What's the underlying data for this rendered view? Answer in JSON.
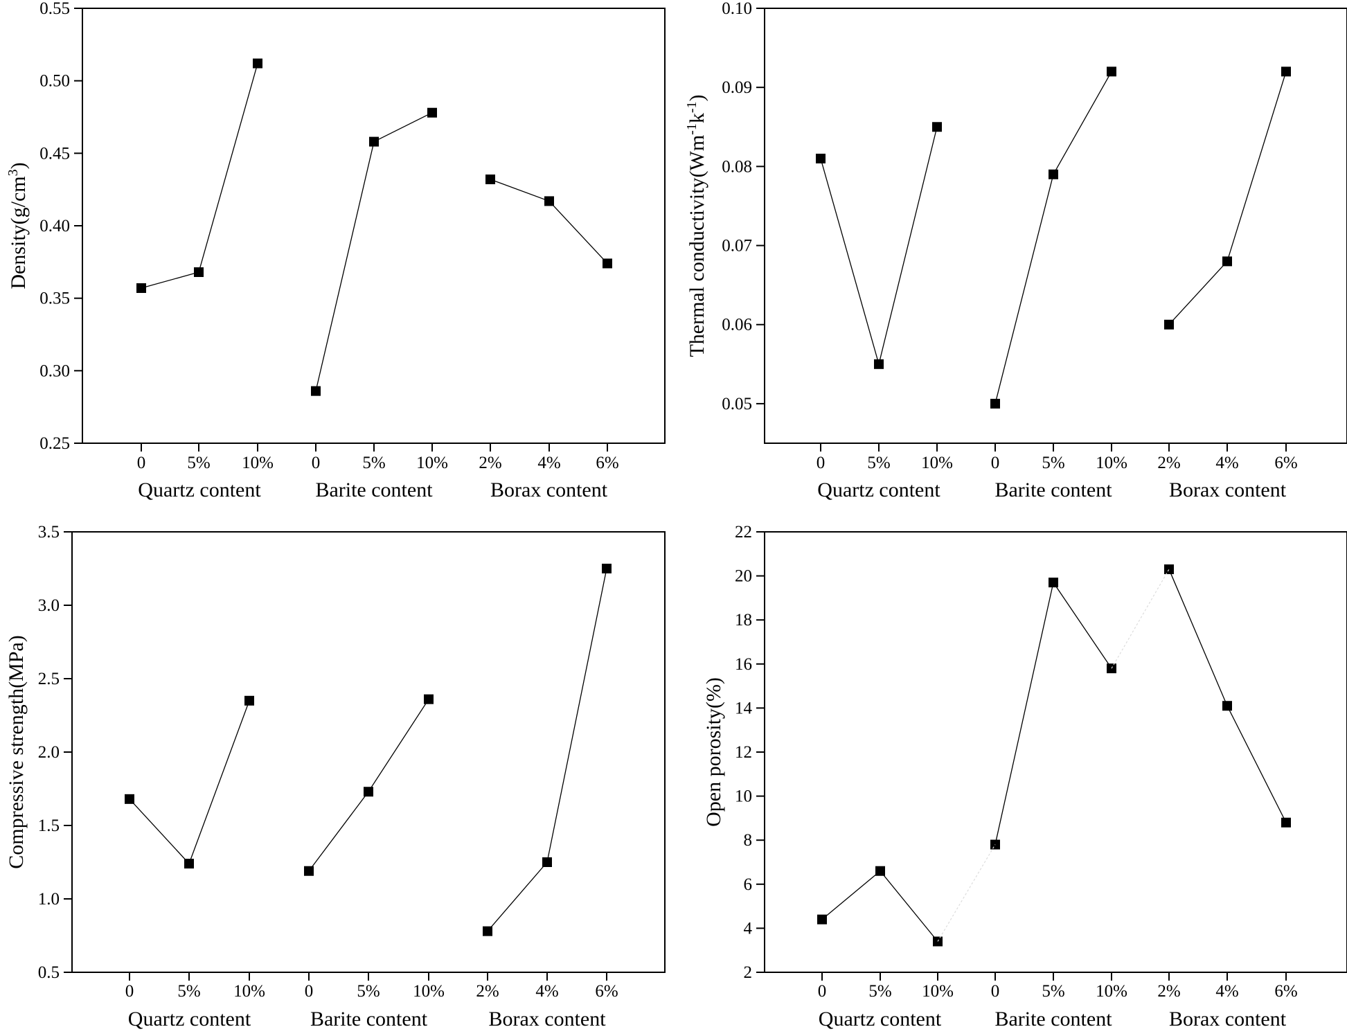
{
  "chart_data": [
    {
      "type": "line",
      "ylabel": "Density(g/cm3)",
      "ylabel_parts": {
        "base": "Density(g/cm",
        "sup": "3",
        "end": ")"
      },
      "ylim": [
        0.25,
        0.55
      ],
      "yticks": [
        0.25,
        0.3,
        0.35,
        0.4,
        0.45,
        0.5,
        0.55
      ],
      "ytick_labels": [
        "0.25",
        "0.30",
        "0.35",
        "0.40",
        "0.45",
        "0.50",
        "0.55"
      ],
      "groups": [
        {
          "name": "Quartz content",
          "categories": [
            "0",
            "5%",
            "10%"
          ],
          "values": [
            0.357,
            0.368,
            0.512
          ]
        },
        {
          "name": "Barite content",
          "categories": [
            "0",
            "5%",
            "10%"
          ],
          "values": [
            0.286,
            0.458,
            0.478
          ]
        },
        {
          "name": "Borax content",
          "categories": [
            "2%",
            "4%",
            "6%"
          ],
          "values": [
            0.432,
            0.417,
            0.374
          ]
        }
      ]
    },
    {
      "type": "line",
      "ylabel": "Thermal conductivity(Wm-1k-1)",
      "ylabel_parts": {
        "base": "Thermal conductivity(Wm",
        "sup": "-1",
        "mid": "k",
        "sup2": "-1",
        "end": ")"
      },
      "ylim": [
        0.045,
        0.1
      ],
      "yticks": [
        0.05,
        0.06,
        0.07,
        0.08,
        0.09,
        0.1
      ],
      "ytick_labels": [
        "0.05",
        "0.06",
        "0.07",
        "0.08",
        "0.09",
        "0.10"
      ],
      "groups": [
        {
          "name": "Quartz content",
          "categories": [
            "0",
            "5%",
            "10%"
          ],
          "values": [
            0.081,
            0.055,
            0.085
          ]
        },
        {
          "name": "Barite content",
          "categories": [
            "0",
            "5%",
            "10%"
          ],
          "values": [
            0.05,
            0.079,
            0.092
          ]
        },
        {
          "name": "Borax content",
          "categories": [
            "2%",
            "4%",
            "6%"
          ],
          "values": [
            0.06,
            0.068,
            0.092
          ]
        }
      ]
    },
    {
      "type": "line",
      "ylabel": "Compressive strength(MPa)",
      "ylim": [
        0.5,
        3.5
      ],
      "yticks": [
        0.5,
        1.0,
        1.5,
        2.0,
        2.5,
        3.0,
        3.5
      ],
      "ytick_labels": [
        "0.5",
        "1.0",
        "1.5",
        "2.0",
        "2.5",
        "3.0",
        "3.5"
      ],
      "groups": [
        {
          "name": "Quartz content",
          "categories": [
            "0",
            "5%",
            "10%"
          ],
          "values": [
            1.68,
            1.24,
            2.35
          ]
        },
        {
          "name": "Barite content",
          "categories": [
            "0",
            "5%",
            "10%"
          ],
          "values": [
            1.19,
            1.73,
            2.36
          ]
        },
        {
          "name": "Borax content",
          "categories": [
            "2%",
            "4%",
            "6%"
          ],
          "values": [
            0.78,
            1.25,
            3.25
          ]
        }
      ]
    },
    {
      "type": "line",
      "ylabel": "Open porosity(%)",
      "ylim": [
        2,
        22
      ],
      "yticks": [
        2,
        4,
        6,
        8,
        10,
        12,
        14,
        16,
        18,
        20,
        22
      ],
      "ytick_labels": [
        "2",
        "4",
        "6",
        "8",
        "10",
        "12",
        "14",
        "16",
        "18",
        "20",
        "22"
      ],
      "groups": [
        {
          "name": "Quartz content",
          "categories": [
            "0",
            "5%",
            "10%"
          ],
          "values": [
            4.4,
            6.6,
            3.4
          ]
        },
        {
          "name": "Barite content",
          "categories": [
            "0",
            "5%",
            "10%"
          ],
          "values": [
            7.8,
            19.7,
            15.8
          ]
        },
        {
          "name": "Borax content",
          "categories": [
            "2%",
            "4%",
            "6%"
          ],
          "values": [
            20.3,
            14.1,
            8.8
          ]
        }
      ]
    }
  ]
}
